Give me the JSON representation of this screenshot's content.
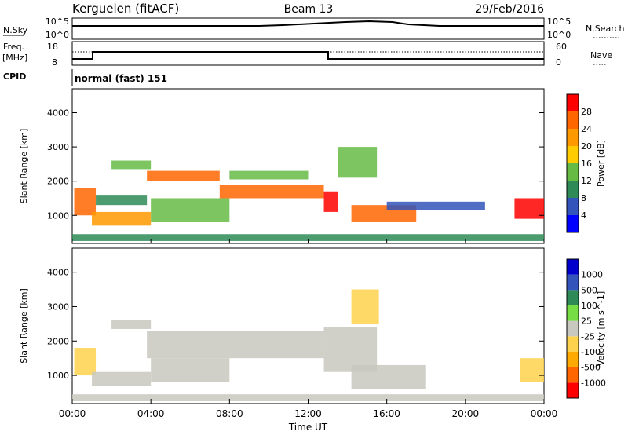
{
  "header": {
    "station": "Kerguelen (fitACF)",
    "beam": "Beam 13",
    "date": "29/Feb/2016"
  },
  "panels": {
    "nsky": {
      "label": "N.Sky",
      "tick_top": "10^5",
      "tick_bottom": "10^0",
      "right_label": "N.Search",
      "right_tick_top": "10^5",
      "right_tick_bottom": "10^0"
    },
    "freq": {
      "label_line1": "Freq.",
      "label_line2": "[MHz]",
      "tick_top": "18",
      "tick_bottom": "8",
      "right_label": "Nave",
      "right_tick_top": "60",
      "right_tick_bottom": "0"
    },
    "cpid": {
      "label": "CPID",
      "value": "normal (fast) 151"
    }
  },
  "colors": {
    "power_scale": [
      "#0000ff",
      "#3355bb",
      "#2e8b57",
      "#66bb44",
      "#ffcc00",
      "#ff9900",
      "#ff6600",
      "#ff0000"
    ],
    "velocity_scale": [
      "#ff0000",
      "#ff6600",
      "#ffaa00",
      "#ffd24d",
      "#c8c8c0",
      "#77dd44",
      "#2e8b57",
      "#3355bb",
      "#0000cc"
    ]
  },
  "chart_data": [
    {
      "type": "heatmap",
      "title": "Power",
      "xlabel": "Time UT",
      "ylabel": "Slant Range [km]",
      "x_ticks": [
        "00:00",
        "04:00",
        "08:00",
        "12:00",
        "16:00",
        "20:00",
        "00:00"
      ],
      "xlim_hours": [
        0,
        24
      ],
      "y_ticks": [
        "1000",
        "2000",
        "3000",
        "4000"
      ],
      "ylim": [
        180,
        4700
      ],
      "colorbar": {
        "label": "Power [dB]",
        "ticks": [
          "4",
          "8",
          "12",
          "16",
          "20",
          "24",
          "28"
        ],
        "range": [
          0,
          32
        ]
      },
      "bands": [
        {
          "x": [
            0.1,
            1.2
          ],
          "y": [
            1000,
            1800
          ],
          "value": 26
        },
        {
          "x": [
            1.0,
            4.0
          ],
          "y": [
            700,
            1100
          ],
          "value": 22
        },
        {
          "x": [
            1.2,
            3.8
          ],
          "y": [
            1300,
            1600
          ],
          "value": 10
        },
        {
          "x": [
            2.0,
            4.0
          ],
          "y": [
            2350,
            2600
          ],
          "value": 14
        },
        {
          "x": [
            3.8,
            7.5
          ],
          "y": [
            2000,
            2300
          ],
          "value": 24
        },
        {
          "x": [
            4.0,
            8.0
          ],
          "y": [
            800,
            1500
          ],
          "value": 14
        },
        {
          "x": [
            7.5,
            12.8
          ],
          "y": [
            1500,
            1900
          ],
          "value": 24
        },
        {
          "x": [
            8.0,
            12.0
          ],
          "y": [
            2050,
            2300
          ],
          "value": 12
        },
        {
          "x": [
            12.8,
            13.5
          ],
          "y": [
            1100,
            1700
          ],
          "value": 28
        },
        {
          "x": [
            13.5,
            15.5
          ],
          "y": [
            2100,
            3000
          ],
          "value": 14
        },
        {
          "x": [
            14.2,
            17.5
          ],
          "y": [
            800,
            1300
          ],
          "value": 26
        },
        {
          "x": [
            16.0,
            21.0
          ],
          "y": [
            1150,
            1400
          ],
          "value": 6
        },
        {
          "x": [
            22.5,
            24.0
          ],
          "y": [
            900,
            1500
          ],
          "value": 30
        },
        {
          "x": [
            0.0,
            24.0
          ],
          "y": [
            250,
            450
          ],
          "value": 8
        }
      ]
    },
    {
      "type": "heatmap",
      "title": "Velocity",
      "xlabel": "Time UT",
      "ylabel": "Slant Range [km]",
      "x_ticks": [
        "00:00",
        "04:00",
        "08:00",
        "12:00",
        "16:00",
        "20:00",
        "00:00"
      ],
      "xlim_hours": [
        0,
        24
      ],
      "y_ticks": [
        "1000",
        "2000",
        "3000",
        "4000"
      ],
      "ylim": [
        180,
        4700
      ],
      "colorbar": {
        "label": "Velocity [m s^-1]",
        "ticks": [
          "-1000",
          "-500",
          "-100",
          "-25",
          "25",
          "100",
          "500",
          "1000"
        ],
        "range": [
          -1200,
          1200
        ]
      },
      "bands": [
        {
          "x": [
            0.1,
            1.2
          ],
          "y": [
            1000,
            1800
          ],
          "value": -300
        },
        {
          "x": [
            1.0,
            4.0
          ],
          "y": [
            700,
            1100
          ],
          "value": 0
        },
        {
          "x": [
            2.0,
            4.0
          ],
          "y": [
            2350,
            2600
          ],
          "value": 0
        },
        {
          "x": [
            3.8,
            12.8
          ],
          "y": [
            1500,
            2300
          ],
          "value": 0
        },
        {
          "x": [
            4.0,
            8.0
          ],
          "y": [
            800,
            1500
          ],
          "value": 0
        },
        {
          "x": [
            12.8,
            15.5
          ],
          "y": [
            1100,
            2400
          ],
          "value": 0
        },
        {
          "x": [
            14.2,
            15.6
          ],
          "y": [
            2500,
            3500
          ],
          "value": -200
        },
        {
          "x": [
            14.2,
            18.0
          ],
          "y": [
            600,
            1300
          ],
          "value": 0
        },
        {
          "x": [
            22.8,
            24.0
          ],
          "y": [
            800,
            1500
          ],
          "value": -200
        },
        {
          "x": [
            0.0,
            24.0
          ],
          "y": [
            250,
            450
          ],
          "value": -60
        }
      ]
    }
  ]
}
